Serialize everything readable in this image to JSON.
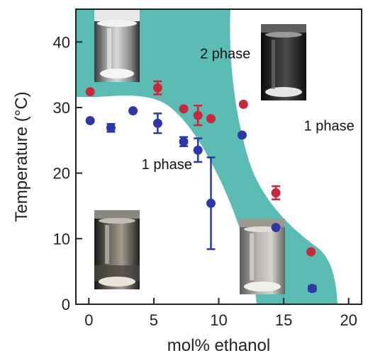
{
  "chart_data": {
    "type": "scatter",
    "xlabel": "mol% ethanol",
    "ylabel": "Temperature (°C)",
    "xlim": [
      -1,
      21
    ],
    "ylim": [
      0,
      45
    ],
    "xticks": [
      0,
      5,
      10,
      15,
      20
    ],
    "yticks": [
      0,
      10,
      20,
      30,
      40
    ],
    "grid": false,
    "colors": {
      "two_phase_region": "#5bbcb4",
      "red_series": "#c8283c",
      "blue_series": "#2c38a8"
    },
    "region_labels": [
      {
        "text": "2 phase",
        "x": 10.5,
        "y": 37.5
      },
      {
        "text": "1 phase",
        "x": 6.0,
        "y": 20.6
      },
      {
        "text": "1 phase",
        "x": 18.5,
        "y": 26.5
      }
    ],
    "series": [
      {
        "color": "#c8283c",
        "points": [
          {
            "x": 0.1,
            "y": 32.4,
            "err": 0
          },
          {
            "x": 5.3,
            "y": 33.0,
            "err": 1.0
          },
          {
            "x": 7.3,
            "y": 29.8,
            "err": 0
          },
          {
            "x": 8.4,
            "y": 28.8,
            "err": 1.5
          },
          {
            "x": 9.4,
            "y": 28.3,
            "err": 0
          },
          {
            "x": 11.9,
            "y": 30.5,
            "err": 0
          },
          {
            "x": 14.4,
            "y": 17.0,
            "err": 1.0
          },
          {
            "x": 17.1,
            "y": 8.0,
            "err": 0
          }
        ]
      },
      {
        "color": "#2c38a8",
        "points": [
          {
            "x": 0.1,
            "y": 28.0,
            "err": 0
          },
          {
            "x": 1.7,
            "y": 26.9,
            "err": 0.6
          },
          {
            "x": 3.4,
            "y": 29.5,
            "err": 0
          },
          {
            "x": 5.3,
            "y": 27.6,
            "err": 1.5
          },
          {
            "x": 7.3,
            "y": 24.8,
            "err": 0.7
          },
          {
            "x": 8.4,
            "y": 23.5,
            "err": 1.8
          },
          {
            "x": 9.4,
            "y": 15.4,
            "err": 7.0
          },
          {
            "x": 11.8,
            "y": 25.8,
            "err": 0
          },
          {
            "x": 14.4,
            "y": 11.7,
            "err": 0
          },
          {
            "x": 17.2,
            "y": 2.4,
            "err": 0.4
          }
        ]
      }
    ]
  }
}
